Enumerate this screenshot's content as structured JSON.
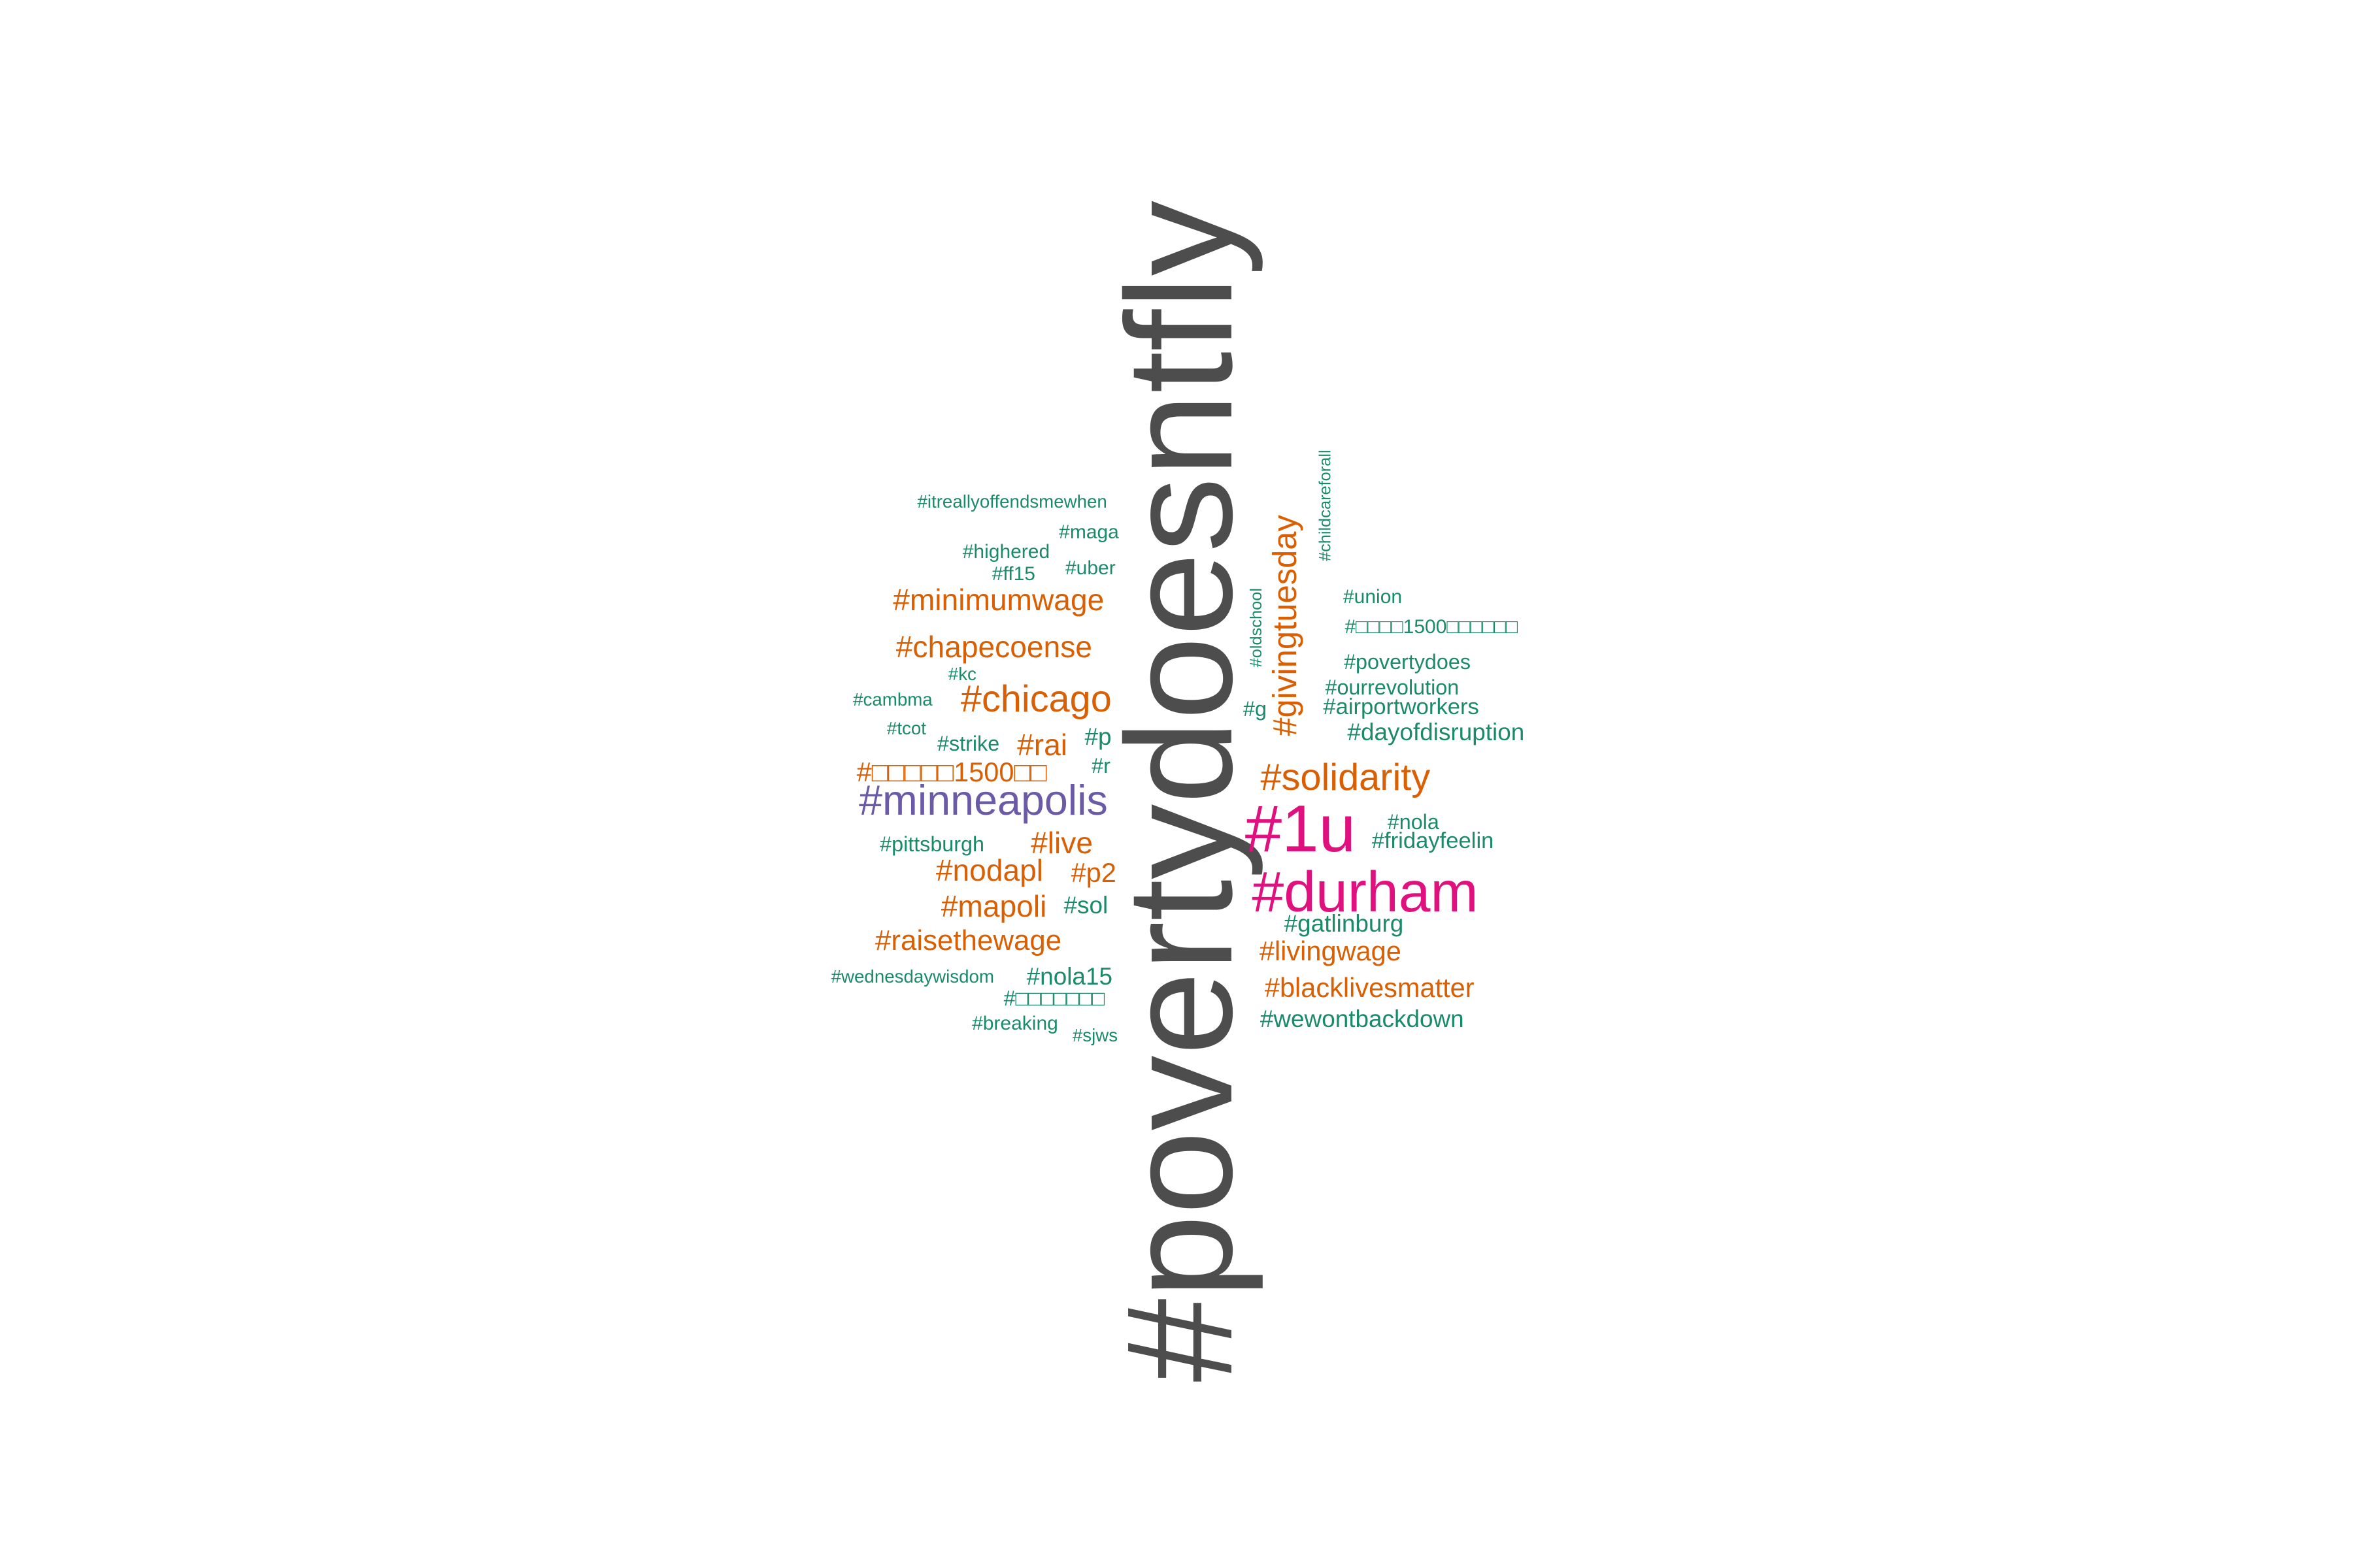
{
  "colors": {
    "dark_gray": "#4d4d4d",
    "teal_green": "#1b8a6b",
    "orange": "#d95f02",
    "purple": "#6a5aa8",
    "magenta": "#e0117f"
  },
  "words": [
    {
      "text": "#povertydoesntfly",
      "color": "dark_gray",
      "rotated": true
    },
    {
      "text": "#1u",
      "color": "magenta",
      "rotated": false
    },
    {
      "text": "#durham",
      "color": "magenta",
      "rotated": false
    },
    {
      "text": "#minneapolis",
      "color": "purple",
      "rotated": false
    },
    {
      "text": "#chicago",
      "color": "orange",
      "rotated": false
    },
    {
      "text": "#solidarity",
      "color": "orange",
      "rotated": false
    },
    {
      "text": "#givingtuesday",
      "color": "orange",
      "rotated": true
    },
    {
      "text": "#minimumwage",
      "color": "orange",
      "rotated": false
    },
    {
      "text": "#chapecoense",
      "color": "orange",
      "rotated": false
    },
    {
      "text": "#□□□□□1500□□",
      "color": "orange",
      "rotated": false
    },
    {
      "text": "#rai",
      "color": "orange",
      "rotated": false
    },
    {
      "text": "#live",
      "color": "orange",
      "rotated": false
    },
    {
      "text": "#nodapl",
      "color": "orange",
      "rotated": false
    },
    {
      "text": "#p2",
      "color": "orange",
      "rotated": false
    },
    {
      "text": "#mapoli",
      "color": "orange",
      "rotated": false
    },
    {
      "text": "#raisethewage",
      "color": "orange",
      "rotated": false
    },
    {
      "text": "#livingwage",
      "color": "orange",
      "rotated": false
    },
    {
      "text": "#blacklivesmatter",
      "color": "orange",
      "rotated": false
    },
    {
      "text": "#itreallyoffendsmewhen",
      "color": "teal_green",
      "rotated": false
    },
    {
      "text": "#maga",
      "color": "teal_green",
      "rotated": false
    },
    {
      "text": "#highered",
      "color": "teal_green",
      "rotated": false
    },
    {
      "text": "#ff15",
      "color": "teal_green",
      "rotated": false
    },
    {
      "text": "#uber",
      "color": "teal_green",
      "rotated": false
    },
    {
      "text": "#kc",
      "color": "teal_green",
      "rotated": false
    },
    {
      "text": "#cambma",
      "color": "teal_green",
      "rotated": false
    },
    {
      "text": "#tcot",
      "color": "teal_green",
      "rotated": false
    },
    {
      "text": "#strike",
      "color": "teal_green",
      "rotated": false
    },
    {
      "text": "#p",
      "color": "teal_green",
      "rotated": false
    },
    {
      "text": "#r",
      "color": "teal_green",
      "rotated": false
    },
    {
      "text": "#pittsburgh",
      "color": "teal_green",
      "rotated": false
    },
    {
      "text": "#sol",
      "color": "teal_green",
      "rotated": false
    },
    {
      "text": "#nola15",
      "color": "teal_green",
      "rotated": false
    },
    {
      "text": "#wednesdaywisdom",
      "color": "teal_green",
      "rotated": false
    },
    {
      "text": "#□□□□□□□",
      "color": "teal_green",
      "rotated": false
    },
    {
      "text": "#breaking",
      "color": "teal_green",
      "rotated": false
    },
    {
      "text": "#sjws",
      "color": "teal_green",
      "rotated": false
    },
    {
      "text": "#childcareforall",
      "color": "teal_green",
      "rotated": true
    },
    {
      "text": "#union",
      "color": "teal_green",
      "rotated": false
    },
    {
      "text": "#□□□□1500□□□□□□",
      "color": "teal_green",
      "rotated": false
    },
    {
      "text": "#oldschool",
      "color": "teal_green",
      "rotated": true
    },
    {
      "text": "#povertydoes",
      "color": "teal_green",
      "rotated": false
    },
    {
      "text": "#ourrevolution",
      "color": "teal_green",
      "rotated": false
    },
    {
      "text": "#g",
      "color": "teal_green",
      "rotated": false
    },
    {
      "text": "#airportworkers",
      "color": "teal_green",
      "rotated": false
    },
    {
      "text": "#dayofdisruption",
      "color": "teal_green",
      "rotated": false
    },
    {
      "text": "#nola",
      "color": "teal_green",
      "rotated": false
    },
    {
      "text": "#fridayfeelin",
      "color": "teal_green",
      "rotated": false
    },
    {
      "text": "#gatlinburg",
      "color": "teal_green",
      "rotated": false
    },
    {
      "text": "#wewontbackdown",
      "color": "teal_green",
      "rotated": false
    }
  ]
}
